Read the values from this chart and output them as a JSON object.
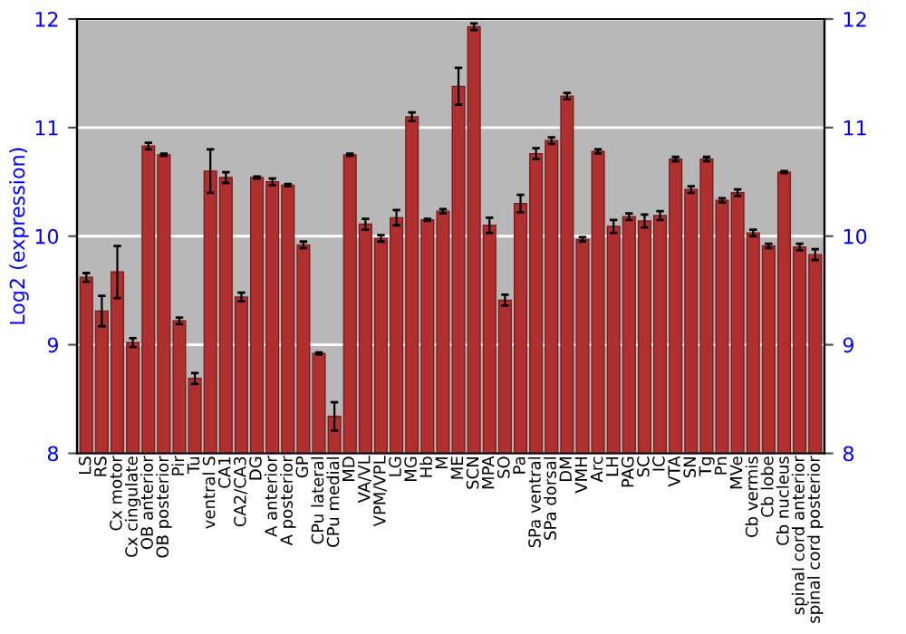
{
  "chart_data": {
    "type": "bar",
    "ylabel": "Log2 (expression)",
    "categories": [
      "LS",
      "RS",
      "Cx motor",
      "Cx cingulate",
      "OB anterior",
      "OB posterior",
      "Pir",
      "Tu",
      "ventral S",
      "CA1",
      "CA2/CA3",
      "DG",
      "A anterior",
      "A posterior",
      "GP",
      "CPu lateral",
      "CPu medial",
      "MD",
      "VA/VL",
      "VPM/VPL",
      "LG",
      "MG",
      "Hb",
      "M",
      "ME",
      "SCN",
      "MPA",
      "SO",
      "Pa",
      "SPa ventral",
      "SPa dorsal",
      "DM",
      "VMH",
      "Arc",
      "LH",
      "PAG",
      "SC",
      "IC",
      "VTA",
      "SN",
      "Tg",
      "Pn",
      "MVe",
      "Cb vermis",
      "Cb lobe",
      "Cb nucleus",
      "spinal cord anterior",
      "spinal cord posterior"
    ],
    "values": [
      9.62,
      9.31,
      9.67,
      9.02,
      10.83,
      10.75,
      9.22,
      8.69,
      10.6,
      10.54,
      9.44,
      10.54,
      10.5,
      10.47,
      9.92,
      8.92,
      8.34,
      10.75,
      10.11,
      9.98,
      10.17,
      11.1,
      10.15,
      10.23,
      11.38,
      11.93,
      10.1,
      9.41,
      10.3,
      10.76,
      10.88,
      11.29,
      9.97,
      10.78,
      10.09,
      10.18,
      10.14,
      10.19,
      10.71,
      10.43,
      10.71,
      10.33,
      10.4,
      10.03,
      9.91,
      10.59,
      9.9,
      9.83
    ],
    "errors": [
      0.04,
      0.14,
      0.24,
      0.04,
      0.03,
      0.01,
      0.03,
      0.05,
      0.2,
      0.05,
      0.04,
      0.01,
      0.03,
      0.01,
      0.03,
      0.01,
      0.13,
      0.01,
      0.05,
      0.03,
      0.07,
      0.04,
      0.01,
      0.02,
      0.17,
      0.03,
      0.07,
      0.05,
      0.08,
      0.05,
      0.03,
      0.03,
      0.02,
      0.02,
      0.06,
      0.03,
      0.06,
      0.04,
      0.02,
      0.03,
      0.02,
      0.02,
      0.03,
      0.03,
      0.02,
      0.01,
      0.03,
      0.05
    ],
    "color": "#b03030",
    "ylim": [
      8,
      12
    ],
    "yticks": [
      8,
      9,
      10,
      11,
      12
    ],
    "y2lim": [
      8,
      12
    ],
    "y2ticks": [
      8,
      9,
      10,
      11,
      12
    ],
    "grid": "y"
  }
}
